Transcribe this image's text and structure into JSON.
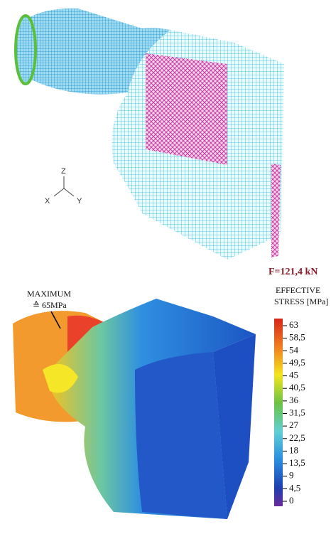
{
  "top": {
    "axes": {
      "z": "Z",
      "x": "X",
      "y": "Y"
    },
    "force": "F=121,4 kN"
  },
  "bottom": {
    "annotation": {
      "line1": "MAXIMUM",
      "line2": "≙ 65MPa"
    },
    "legend": {
      "title1": "EFFECTIVE",
      "title2": "STRESS [MPa]",
      "ticks": [
        63,
        {
          "value": 58.5,
          "label": "58,5"
        },
        54,
        {
          "value": 49.5,
          "label": "49,5"
        },
        45,
        {
          "value": 40.5,
          "label": "40,5"
        },
        36,
        {
          "value": 31.5,
          "label": "31,5"
        },
        27,
        {
          "value": 22.5,
          "label": "22,5"
        },
        18,
        {
          "value": 13.5,
          "label": "13,5"
        },
        9,
        {
          "value": 4.5,
          "label": "4,5"
        },
        0
      ]
    }
  }
}
